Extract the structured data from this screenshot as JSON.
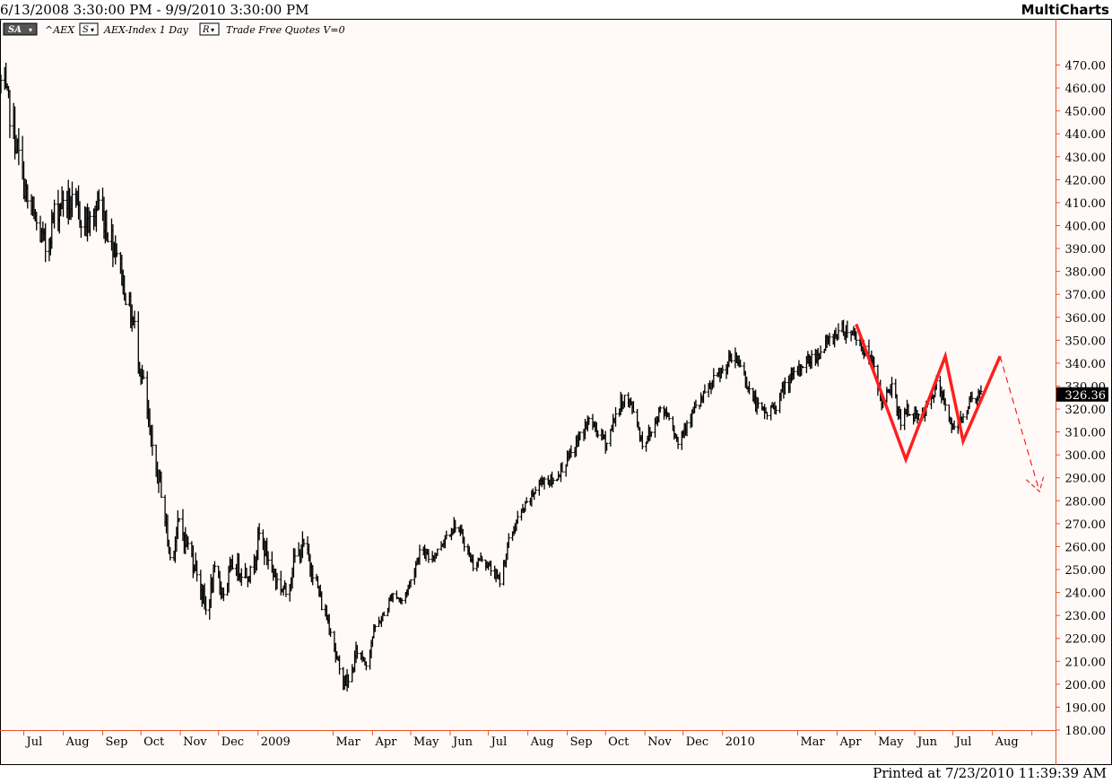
{
  "header": {
    "date_range": "6/13/2008 3:30:00 PM - 9/9/2010 3:30:00 PM",
    "app_name": "MultiCharts"
  },
  "toolbar": {
    "sa_label": "SA",
    "symbol": "^AEX",
    "s_label": "S",
    "description": "AEX-Index 1 Day",
    "r_label": "R",
    "suffix": "Trade Free Quotes V=0"
  },
  "footer": {
    "printed": "Printed at 7/23/2010 11:39:39 AM"
  },
  "colors": {
    "background": "#fffaf8",
    "axis": "#e7542b",
    "bars": "#000000",
    "pattern": "#ff1f1f",
    "price_tag": "#000000"
  },
  "chart_data": {
    "type": "ohlc",
    "series_name": "^AEX",
    "ylim": [
      180,
      475
    ],
    "y_ticks": [
      470,
      460,
      450,
      440,
      430,
      420,
      410,
      400,
      390,
      380,
      370,
      360,
      350,
      340,
      330,
      320,
      310,
      300,
      290,
      280,
      270,
      260,
      250,
      240,
      230,
      220,
      210,
      200,
      190,
      180
    ],
    "y_tick_format": "0.00",
    "last_price": "326.36",
    "last_value": 326.36,
    "x_labels": [
      "Jul",
      "Aug",
      "Sep",
      "Oct",
      "Nov",
      "Dec",
      "2009",
      "Mar",
      "Apr",
      "May",
      "Jun",
      "Jul",
      "Aug",
      "Sep",
      "Oct",
      "Nov",
      "Dec",
      "2010",
      "Mar",
      "Apr",
      "May",
      "Jun",
      "Jul",
      "Aug"
    ],
    "x_label_dates": [
      "2008-07-01",
      "2008-08-01",
      "2008-09-01",
      "2008-10-01",
      "2008-11-01",
      "2008-12-01",
      "2009-01-01",
      "2009-03-01",
      "2009-04-01",
      "2009-05-01",
      "2009-06-01",
      "2009-07-01",
      "2009-08-01",
      "2009-09-01",
      "2009-10-01",
      "2009-11-01",
      "2009-12-01",
      "2010-01-01",
      "2010-03-01",
      "2010-04-01",
      "2010-05-01",
      "2010-06-01",
      "2010-07-01",
      "2010-08-01"
    ],
    "x_range": [
      "2008-06-13",
      "2010-09-09"
    ],
    "price_path": [
      [
        "2008-06-13",
        462
      ],
      [
        "2008-06-20",
        450
      ],
      [
        "2008-06-27",
        430
      ],
      [
        "2008-07-04",
        410
      ],
      [
        "2008-07-11",
        400
      ],
      [
        "2008-07-18",
        390
      ],
      [
        "2008-07-25",
        405
      ],
      [
        "2008-08-01",
        412
      ],
      [
        "2008-08-08",
        408
      ],
      [
        "2008-08-15",
        405
      ],
      [
        "2008-08-22",
        400
      ],
      [
        "2008-08-29",
        410
      ],
      [
        "2008-09-05",
        398
      ],
      [
        "2008-09-12",
        390
      ],
      [
        "2008-09-19",
        370
      ],
      [
        "2008-09-26",
        355
      ],
      [
        "2008-10-03",
        330
      ],
      [
        "2008-10-10",
        300
      ],
      [
        "2008-10-17",
        285
      ],
      [
        "2008-10-24",
        255
      ],
      [
        "2008-10-31",
        270
      ],
      [
        "2008-11-07",
        260
      ],
      [
        "2008-11-14",
        250
      ],
      [
        "2008-11-21",
        232
      ],
      [
        "2008-11-28",
        248
      ],
      [
        "2008-12-05",
        240
      ],
      [
        "2008-12-12",
        252
      ],
      [
        "2008-12-19",
        250
      ],
      [
        "2008-12-26",
        248
      ],
      [
        "2009-01-02",
        265
      ],
      [
        "2009-01-09",
        255
      ],
      [
        "2009-01-16",
        245
      ],
      [
        "2009-01-23",
        240
      ],
      [
        "2009-01-30",
        255
      ],
      [
        "2009-02-06",
        260
      ],
      [
        "2009-02-13",
        250
      ],
      [
        "2009-02-20",
        235
      ],
      [
        "2009-02-27",
        225
      ],
      [
        "2009-03-06",
        205
      ],
      [
        "2009-03-13",
        200
      ],
      [
        "2009-03-20",
        215
      ],
      [
        "2009-03-27",
        210
      ],
      [
        "2009-04-03",
        225
      ],
      [
        "2009-04-10",
        230
      ],
      [
        "2009-04-17",
        240
      ],
      [
        "2009-04-24",
        236
      ],
      [
        "2009-05-01",
        245
      ],
      [
        "2009-05-08",
        258
      ],
      [
        "2009-05-15",
        255
      ],
      [
        "2009-05-22",
        258
      ],
      [
        "2009-05-29",
        265
      ],
      [
        "2009-06-05",
        270
      ],
      [
        "2009-06-12",
        262
      ],
      [
        "2009-06-19",
        252
      ],
      [
        "2009-06-26",
        255
      ],
      [
        "2009-07-03",
        250
      ],
      [
        "2009-07-10",
        245
      ],
      [
        "2009-07-17",
        262
      ],
      [
        "2009-07-24",
        272
      ],
      [
        "2009-07-31",
        278
      ],
      [
        "2009-08-07",
        285
      ],
      [
        "2009-08-14",
        290
      ],
      [
        "2009-08-21",
        288
      ],
      [
        "2009-08-28",
        295
      ],
      [
        "2009-09-04",
        300
      ],
      [
        "2009-09-11",
        308
      ],
      [
        "2009-09-18",
        315
      ],
      [
        "2009-09-25",
        310
      ],
      [
        "2009-10-02",
        305
      ],
      [
        "2009-10-09",
        318
      ],
      [
        "2009-10-16",
        325
      ],
      [
        "2009-10-23",
        320
      ],
      [
        "2009-10-30",
        305
      ],
      [
        "2009-11-06",
        310
      ],
      [
        "2009-11-13",
        320
      ],
      [
        "2009-11-20",
        318
      ],
      [
        "2009-11-27",
        305
      ],
      [
        "2009-12-04",
        315
      ],
      [
        "2009-12-11",
        320
      ],
      [
        "2009-12-18",
        326
      ],
      [
        "2009-12-25",
        332
      ],
      [
        "2010-01-01",
        336
      ],
      [
        "2010-01-08",
        342
      ],
      [
        "2010-01-15",
        340
      ],
      [
        "2010-01-22",
        328
      ],
      [
        "2010-01-29",
        320
      ],
      [
        "2010-02-05",
        318
      ],
      [
        "2010-02-12",
        322
      ],
      [
        "2010-02-19",
        330
      ],
      [
        "2010-02-26",
        334
      ],
      [
        "2010-03-05",
        340
      ],
      [
        "2010-03-12",
        342
      ],
      [
        "2010-03-19",
        345
      ],
      [
        "2010-03-26",
        350
      ],
      [
        "2010-04-02",
        354
      ],
      [
        "2010-04-09",
        355
      ],
      [
        "2010-04-16",
        352
      ],
      [
        "2010-04-23",
        345
      ],
      [
        "2010-04-30",
        338
      ],
      [
        "2010-05-07",
        322
      ],
      [
        "2010-05-14",
        330
      ],
      [
        "2010-05-21",
        315
      ],
      [
        "2010-05-28",
        320
      ],
      [
        "2010-06-04",
        315
      ],
      [
        "2010-06-11",
        320
      ],
      [
        "2010-06-18",
        330
      ],
      [
        "2010-06-25",
        322
      ],
      [
        "2010-07-02",
        310
      ],
      [
        "2010-07-09",
        318
      ],
      [
        "2010-07-16",
        325
      ],
      [
        "2010-07-23",
        326.36
      ]
    ],
    "pattern_line": [
      [
        "2010-04-16",
        357
      ],
      [
        "2010-05-25",
        298
      ],
      [
        "2010-06-25",
        343
      ],
      [
        "2010-07-09",
        306
      ],
      [
        "2010-08-07",
        343
      ]
    ],
    "projection_line": [
      [
        "2010-08-07",
        343
      ],
      [
        "2010-09-07",
        284
      ]
    ]
  }
}
